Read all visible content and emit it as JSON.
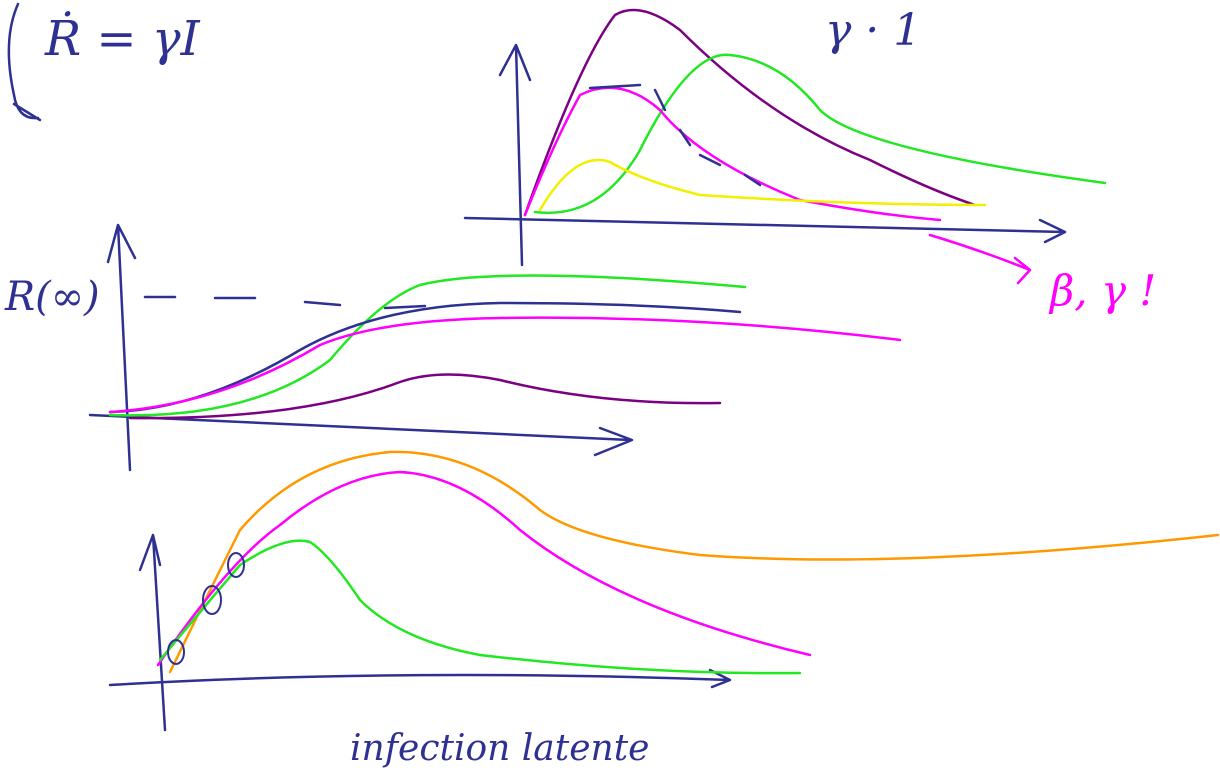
{
  "notes": {
    "equation": "Ṙ = γI",
    "gamma": "γ · 1",
    "r_infinity": "R(∞)",
    "params": "β, γ !",
    "caption": "infection latente"
  }
}
